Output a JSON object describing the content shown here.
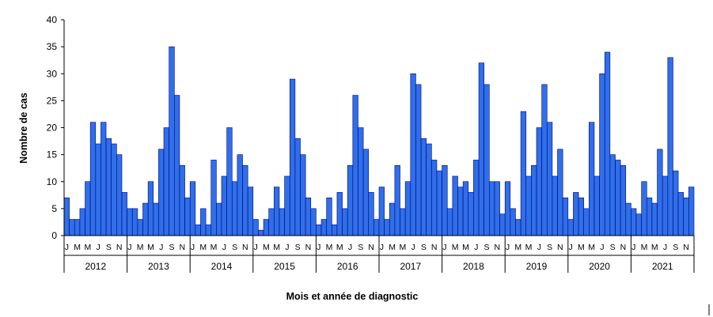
{
  "chart_data": {
    "type": "bar",
    "title": "",
    "xlabel": "Mois et année de diagnostic",
    "ylabel": "Nombre de cas",
    "ylim": [
      0,
      40
    ],
    "yticks": [
      0,
      5,
      10,
      15,
      20,
      25,
      30,
      35,
      40
    ],
    "grid": false,
    "legend": "none",
    "bar_color": "#2f6fe8",
    "bar_edge_color": "#000080",
    "month_labels": [
      "J",
      "M",
      "M",
      "J",
      "S",
      "N"
    ],
    "years": [
      "2012",
      "2013",
      "2014",
      "2015",
      "2016",
      "2017",
      "2018",
      "2019",
      "2020",
      "2021"
    ],
    "series": [
      {
        "values": [
          7,
          3,
          3,
          5,
          10,
          21,
          17,
          21,
          18,
          17,
          15,
          8,
          5,
          5,
          3,
          6,
          10,
          6,
          16,
          20,
          35,
          26,
          13,
          7,
          10,
          2,
          5,
          2,
          14,
          6,
          11,
          20,
          10,
          15,
          13,
          9,
          3,
          1,
          3,
          5,
          9,
          5,
          11,
          29,
          18,
          15,
          7,
          5,
          2,
          3,
          7,
          2,
          8,
          5,
          13,
          26,
          20,
          16,
          8,
          3,
          9,
          3,
          6,
          13,
          5,
          10,
          30,
          28,
          18,
          17,
          14,
          12,
          13,
          5,
          11,
          9,
          10,
          8,
          14,
          32,
          28,
          10,
          10,
          4,
          10,
          5,
          3,
          23,
          11,
          13,
          20,
          28,
          21,
          11,
          16,
          7,
          3,
          8,
          7,
          5,
          21,
          11,
          30,
          34,
          15,
          14,
          13,
          6,
          5,
          4,
          10,
          7,
          6,
          16,
          11,
          33,
          12,
          8,
          7,
          9
        ]
      }
    ]
  }
}
